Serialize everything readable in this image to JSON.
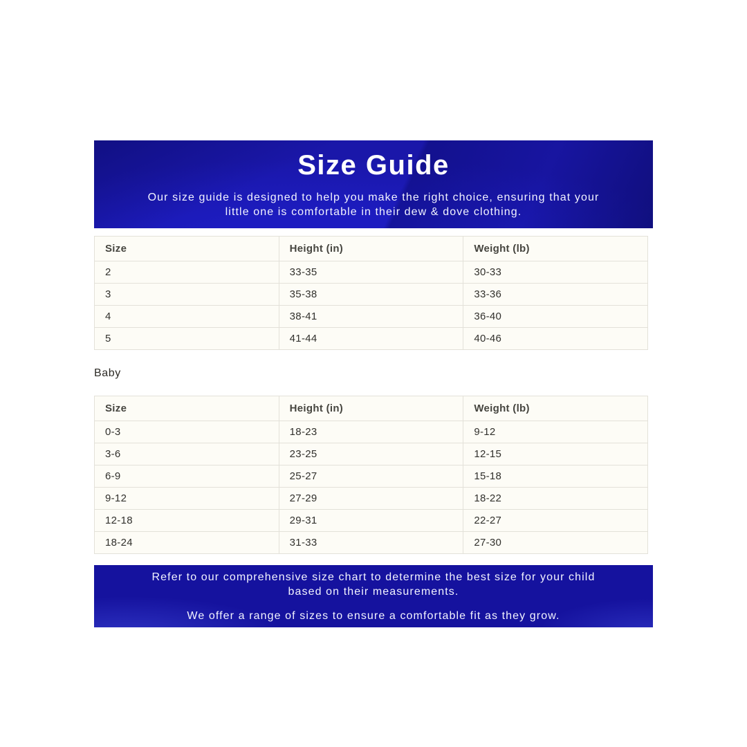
{
  "header": {
    "title": "Size Guide",
    "subtitle": "Our size guide is designed to help you make the right choice, ensuring that your little one is comfortable in their dew & dove clothing."
  },
  "toddler_table": {
    "columns": [
      "Size",
      "Height (in)",
      "Weight (lb)"
    ],
    "rows": [
      [
        "2",
        "33-35",
        "30-33"
      ],
      [
        "3",
        "35-38",
        "33-36"
      ],
      [
        "4",
        "38-41",
        "36-40"
      ],
      [
        "5",
        "41-44",
        "40-46"
      ]
    ]
  },
  "baby_section": {
    "label": "Baby"
  },
  "baby_table": {
    "columns": [
      "Size",
      "Height (in)",
      "Weight (lb)"
    ],
    "rows": [
      [
        "0-3",
        "18-23",
        "9-12"
      ],
      [
        "3-6",
        "23-25",
        "12-15"
      ],
      [
        "6-9",
        "25-27",
        "15-18"
      ],
      [
        "9-12",
        "27-29",
        "18-22"
      ],
      [
        "12-18",
        "29-31",
        "22-27"
      ],
      [
        "18-24",
        "31-33",
        "27-30"
      ]
    ]
  },
  "footer": {
    "note1": "Refer to our comprehensive size chart to determine the best size for your child based on their measurements.",
    "note2": "We offer a range of sizes to ensure a comfortable fit as they grow."
  },
  "colors": {
    "banner_blue": "#1a17a9",
    "banner_blue_dark": "#0d0b72",
    "banner_blue_light": "#3e48da",
    "footer_blue": "#15129e",
    "table_background": "#fdfcf6",
    "table_border": "#e3e1d9",
    "table_text": "#31302c",
    "banner_text": "#f2f3ff"
  }
}
